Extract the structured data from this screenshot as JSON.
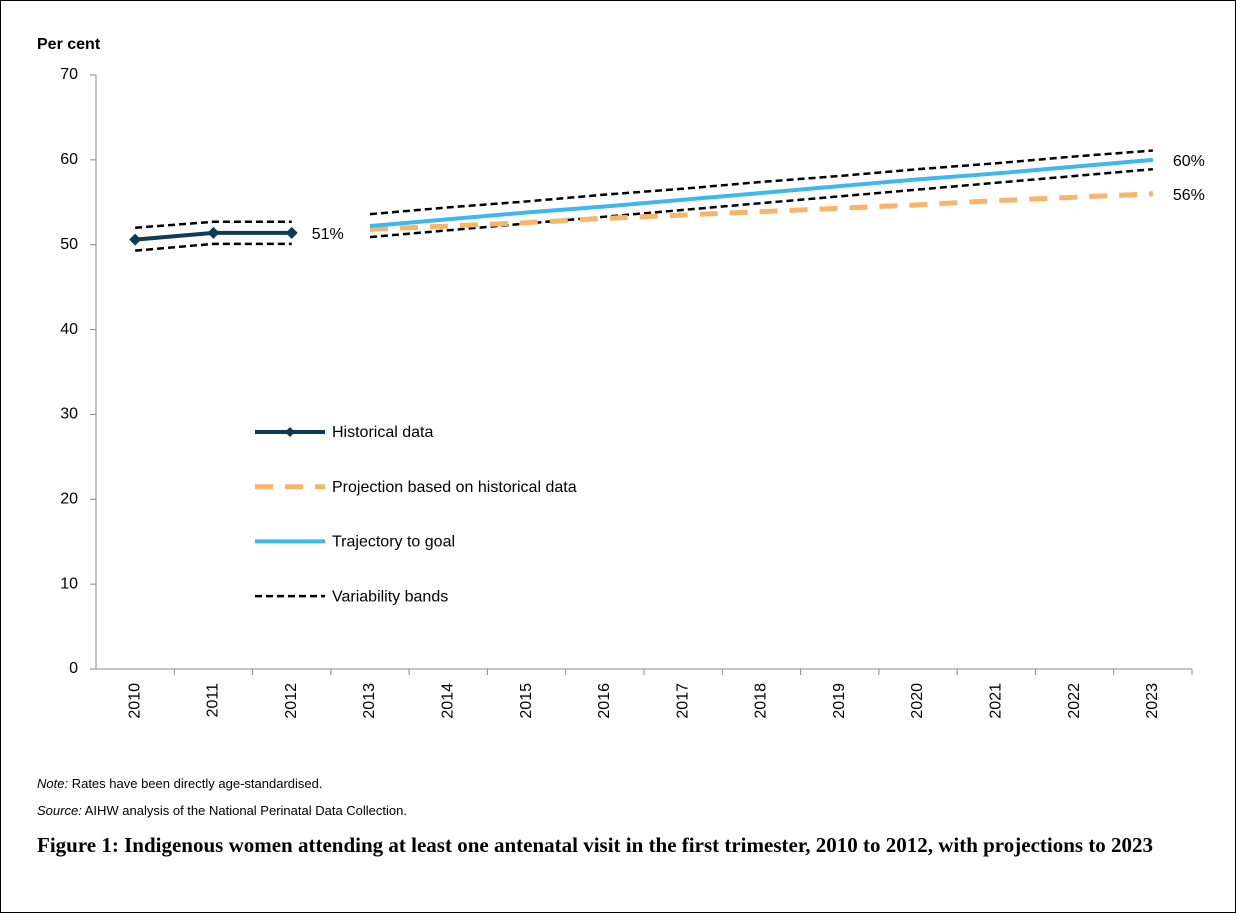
{
  "chart_data": {
    "type": "line",
    "y_label": "Per cent",
    "categories": [
      "2010",
      "2011",
      "2012",
      "2013",
      "2014",
      "2015",
      "2016",
      "2017",
      "2018",
      "2019",
      "2020",
      "2021",
      "2022",
      "2023"
    ],
    "ylim": [
      0,
      70
    ],
    "yticks": [
      0,
      10,
      20,
      30,
      40,
      50,
      60,
      70
    ],
    "legend": "center-left",
    "series": [
      {
        "name": "Historical data",
        "color": "#0f3b57",
        "style": "solid-markers",
        "values": [
          50.6,
          51.4,
          51.4,
          null,
          null,
          null,
          null,
          null,
          null,
          null,
          null,
          null,
          null,
          null
        ],
        "value_labels": [
          null,
          null,
          "51%",
          null,
          null,
          null,
          null,
          null,
          null,
          null,
          null,
          null,
          null,
          null
        ]
      },
      {
        "name": "Projection based on historical data",
        "color": "#f7b46b",
        "style": "dashed",
        "values": [
          null,
          null,
          null,
          51.8,
          52.2,
          52.6,
          53.1,
          53.5,
          53.9,
          54.3,
          54.7,
          55.2,
          55.6,
          56.0
        ],
        "value_labels": [
          null,
          null,
          null,
          null,
          null,
          null,
          null,
          null,
          null,
          null,
          null,
          null,
          null,
          "56%"
        ]
      },
      {
        "name": "Trajectory to goal",
        "color": "#3db8ee",
        "style": "solid",
        "values": [
          null,
          null,
          null,
          52.2,
          53.0,
          53.8,
          54.5,
          55.3,
          56.1,
          56.9,
          57.7,
          58.4,
          59.2,
          60.0
        ],
        "value_labels": [
          null,
          null,
          null,
          null,
          null,
          null,
          null,
          null,
          null,
          null,
          null,
          null,
          null,
          "60%"
        ]
      }
    ],
    "bands": {
      "name": "Variability bands",
      "color": "#000000",
      "pieces": [
        {
          "upper": [
            52.0,
            52.7,
            52.7,
            null,
            null,
            null,
            null,
            null,
            null,
            null,
            null,
            null,
            null,
            null
          ],
          "lower": [
            49.3,
            50.1,
            50.1,
            null,
            null,
            null,
            null,
            null,
            null,
            null,
            null,
            null,
            null,
            null
          ]
        },
        {
          "upper": [
            null,
            null,
            null,
            53.6,
            54.4,
            55.1,
            55.9,
            56.6,
            57.4,
            58.1,
            58.9,
            59.6,
            60.4,
            61.1
          ],
          "lower": [
            null,
            null,
            null,
            50.9,
            51.7,
            52.5,
            53.3,
            54.1,
            54.9,
            55.7,
            56.5,
            57.3,
            58.1,
            58.9
          ]
        }
      ]
    }
  },
  "note": {
    "label": "Note:",
    "text": "Rates have been directly age-standardised."
  },
  "source": {
    "label": "Source:",
    "text": "AIHW analysis of the National Perinatal Data Collection."
  },
  "caption": "Figure 1: Indigenous women attending at least one antenatal visit in the first trimester, 2010 to 2012, with projections to 2023"
}
